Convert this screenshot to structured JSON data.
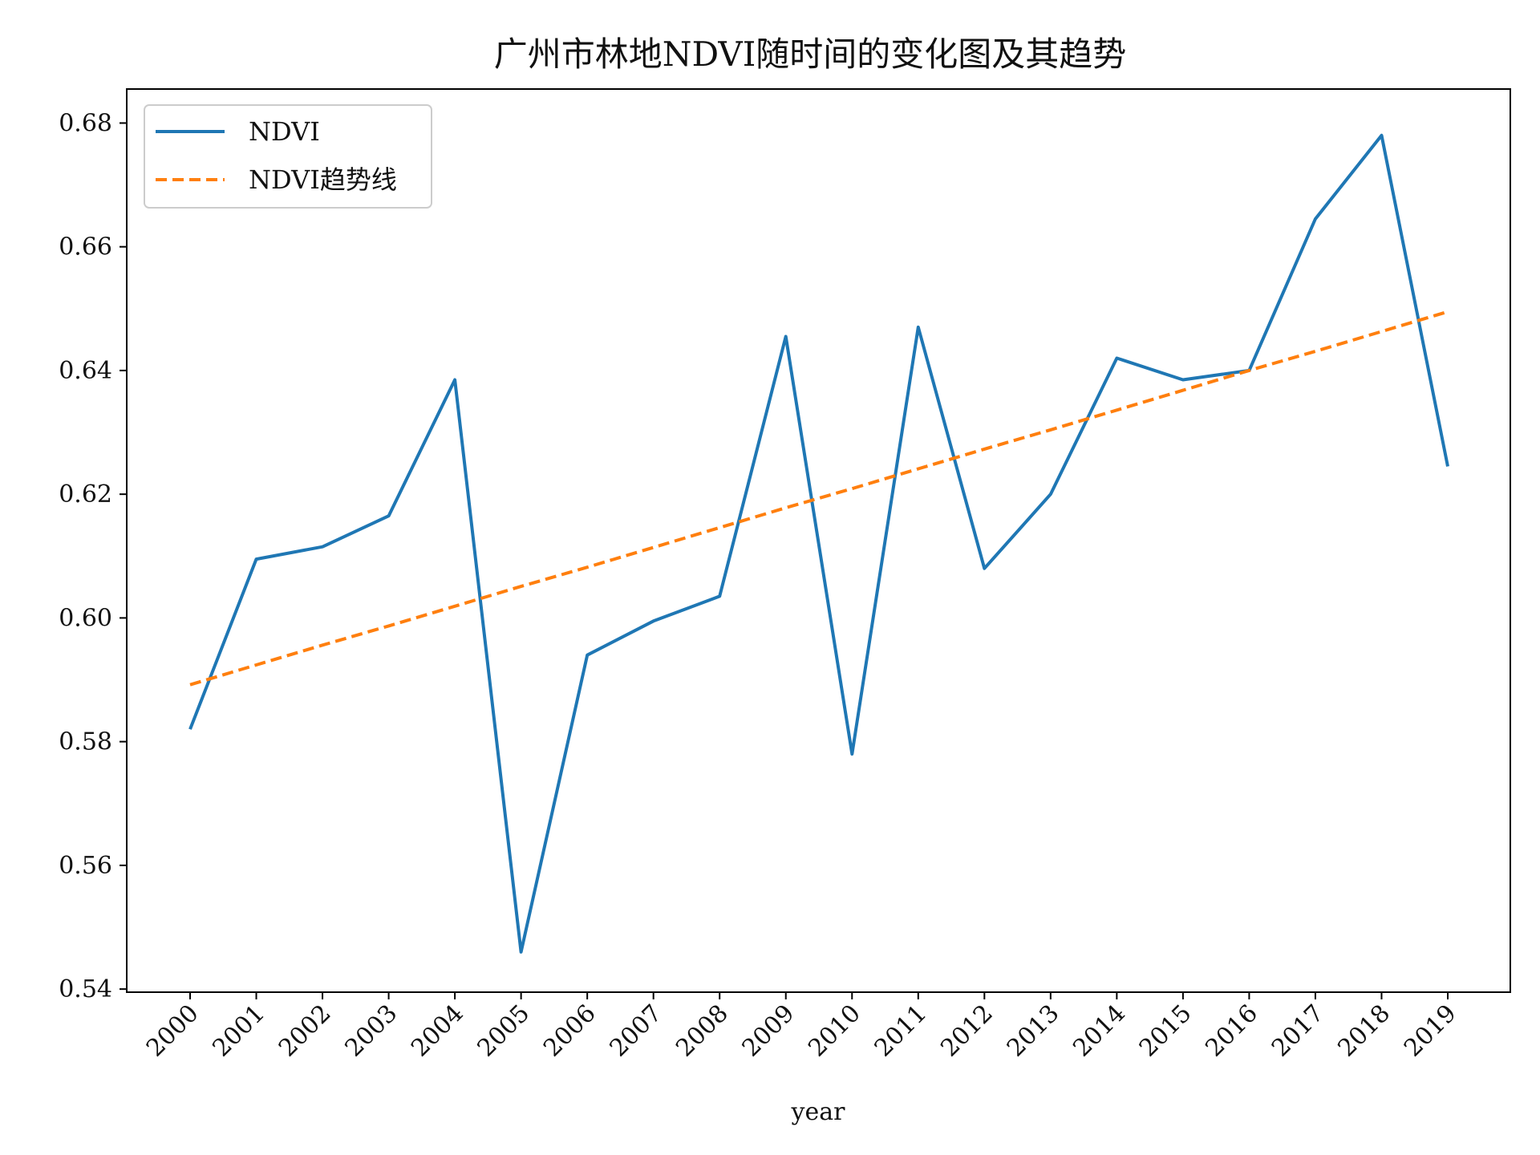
{
  "colors": {
    "ndvi": "#1f77b4",
    "trend": "#ff7f0e",
    "axis": "#000000"
  },
  "chart_data": {
    "type": "line",
    "title": "广州市林地NDVI随时间的变化图及其趋势",
    "xlabel": "year",
    "ylabel": "",
    "categories": [
      "2000",
      "2001",
      "2002",
      "2003",
      "2004",
      "2005",
      "2006",
      "2007",
      "2008",
      "2009",
      "2010",
      "2011",
      "2012",
      "2013",
      "2014",
      "2015",
      "2016",
      "2017",
      "2018",
      "2019"
    ],
    "ylim": [
      0.5395,
      0.6855
    ],
    "yticks": [
      0.54,
      0.56,
      0.58,
      0.6,
      0.62,
      0.64,
      0.66,
      0.68
    ],
    "ytick_labels": [
      "0.54",
      "0.56",
      "0.58",
      "0.60",
      "0.62",
      "0.64",
      "0.66",
      "0.68"
    ],
    "grid": false,
    "legend_position": "top-left",
    "series": [
      {
        "name": "NDVI",
        "style": "solid",
        "values": [
          0.582,
          0.6095,
          0.6115,
          0.6165,
          0.6385,
          0.546,
          0.594,
          0.5995,
          0.6035,
          0.6455,
          0.578,
          0.647,
          0.608,
          0.62,
          0.642,
          0.6385,
          0.64,
          0.6645,
          0.678,
          0.6245
        ]
      },
      {
        "name": "NDVI趋势线",
        "style": "dashed",
        "values": [
          0.5892,
          0.5924,
          0.5956,
          0.5987,
          0.6019,
          0.6051,
          0.6082,
          0.6114,
          0.6146,
          0.6178,
          0.6209,
          0.6241,
          0.6273,
          0.6304,
          0.6336,
          0.6368,
          0.64,
          0.6431,
          0.6463,
          0.6495
        ]
      }
    ]
  }
}
